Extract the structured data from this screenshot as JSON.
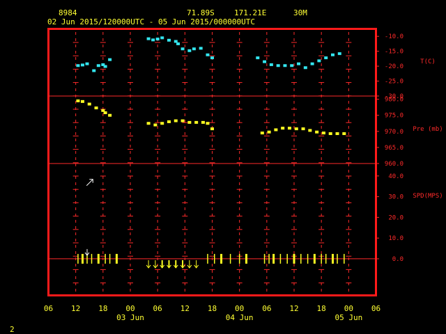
{
  "header": {
    "station_id": "8984",
    "lat": "71.89S",
    "lon": "171.21E",
    "elev": "30M",
    "time_range": "02 Jun 2015/120000UTC - 05 Jun 2015/000000UTC"
  },
  "footer": {
    "page_number": "2"
  },
  "colors": {
    "frame": "#ff1a1a",
    "grid": "#ff2a2a",
    "temperature": "#33e5ee",
    "pressure": "#ffff22",
    "wind": "#ffff22",
    "axis_text": "#ffff33"
  },
  "chart_data": {
    "type": "scatter",
    "x_axis": {
      "unit": "hours from 02 Jun 06 UTC",
      "range": [
        0,
        72
      ],
      "tick_labels": [
        "06",
        "12",
        "18",
        "00",
        "06",
        "12",
        "18",
        "00",
        "06",
        "12",
        "18",
        "00",
        "06"
      ],
      "date_labels": [
        {
          "hour": 18,
          "label": "03 Jun"
        },
        {
          "hour": 42,
          "label": "04 Jun"
        },
        {
          "hour": 66,
          "label": "05 Jun"
        }
      ]
    },
    "panels": [
      {
        "name": "temperature",
        "ylabel": "T(C)",
        "ylim": [
          -30,
          -7.5
        ],
        "tick_labels": [
          "-10.0",
          "-15.0",
          "-20.0",
          "-25.0",
          "-30.0"
        ],
        "tick_values": [
          -10,
          -15,
          -20,
          -25,
          -30
        ],
        "points": [
          [
            6.5,
            -19.8
          ],
          [
            7.5,
            -19.6
          ],
          [
            8.5,
            -19.2
          ],
          [
            10,
            -21.5
          ],
          [
            11,
            -19.8
          ],
          [
            12,
            -19.5
          ],
          [
            12.5,
            -20.1
          ],
          [
            13.5,
            -17.8
          ],
          [
            22,
            -10.8
          ],
          [
            23,
            -11.2
          ],
          [
            24,
            -10.9
          ],
          [
            25,
            -10.5
          ],
          [
            26.5,
            -11.3
          ],
          [
            28,
            -11.7
          ],
          [
            28.5,
            -12.5
          ],
          [
            29.5,
            -14.2
          ],
          [
            31,
            -14.8
          ],
          [
            32,
            -14.2
          ],
          [
            33.5,
            -14.0
          ],
          [
            35,
            -16.2
          ],
          [
            36,
            -17.2
          ],
          [
            46,
            -17.2
          ],
          [
            47.5,
            -18.5
          ],
          [
            49,
            -19.5
          ],
          [
            50.5,
            -19.8
          ],
          [
            52,
            -19.8
          ],
          [
            53.5,
            -19.8
          ],
          [
            55,
            -19.2
          ],
          [
            56.5,
            -20.5
          ],
          [
            58,
            -19.2
          ],
          [
            59.5,
            -18.2
          ],
          [
            61,
            -17.2
          ],
          [
            62.5,
            -16.2
          ],
          [
            64,
            -15.8
          ]
        ]
      },
      {
        "name": "pressure",
        "ylabel": "Pre (mb)",
        "ylim": [
          960,
          981
        ],
        "tick_labels": [
          "980.0",
          "975.0",
          "970.0",
          "965.0",
          "960.0"
        ],
        "tick_values": [
          980,
          975,
          970,
          965,
          960
        ],
        "points": [
          [
            6.5,
            979.5
          ],
          [
            7.5,
            979.3
          ],
          [
            9,
            978.5
          ],
          [
            10.5,
            977.3
          ],
          [
            12,
            976.5
          ],
          [
            12.5,
            975.8
          ],
          [
            13.5,
            975.0
          ],
          [
            22,
            972.5
          ],
          [
            23.5,
            972.0
          ],
          [
            25,
            972.5
          ],
          [
            26.5,
            973.0
          ],
          [
            28,
            973.3
          ],
          [
            29.5,
            973.3
          ],
          [
            31,
            972.8
          ],
          [
            32.5,
            972.8
          ],
          [
            34,
            972.8
          ],
          [
            35,
            972.5
          ],
          [
            36,
            970.8
          ],
          [
            47,
            969.5
          ],
          [
            48.5,
            969.8
          ],
          [
            50,
            970.5
          ],
          [
            51.5,
            971.0
          ],
          [
            53,
            971.0
          ],
          [
            54.5,
            970.8
          ],
          [
            56,
            970.8
          ],
          [
            57.5,
            970.3
          ],
          [
            59,
            969.8
          ],
          [
            60.5,
            969.5
          ],
          [
            62,
            969.3
          ],
          [
            63.5,
            969.3
          ],
          [
            65,
            969.3
          ]
        ]
      },
      {
        "name": "wind speed",
        "ylabel": "SPD(MPS)",
        "ylim": [
          -17.5,
          46
        ],
        "tick_labels": [
          "40.0",
          "30.0",
          "20.0",
          "10.0",
          "0.0"
        ],
        "tick_values": [
          40,
          30,
          20,
          10,
          0
        ],
        "barbs_baseline_mps": 0.0,
        "wind_barbs": [
          6.5,
          7.5,
          8.5,
          9.5,
          11,
          12.5,
          13.5,
          15,
          35,
          36.5,
          38,
          40,
          42,
          43.5,
          47.5,
          48.5,
          49.5,
          51,
          52.5,
          54,
          55.5,
          57,
          58.5,
          60,
          61,
          62.5,
          63.5,
          65
        ],
        "wind_arrows_down": [
          22,
          23.5,
          25,
          26.5,
          28,
          29.5,
          31,
          32.5
        ],
        "wind_arrow_upright_at": {
          "hour": 9,
          "speed": 37
        }
      }
    ]
  }
}
